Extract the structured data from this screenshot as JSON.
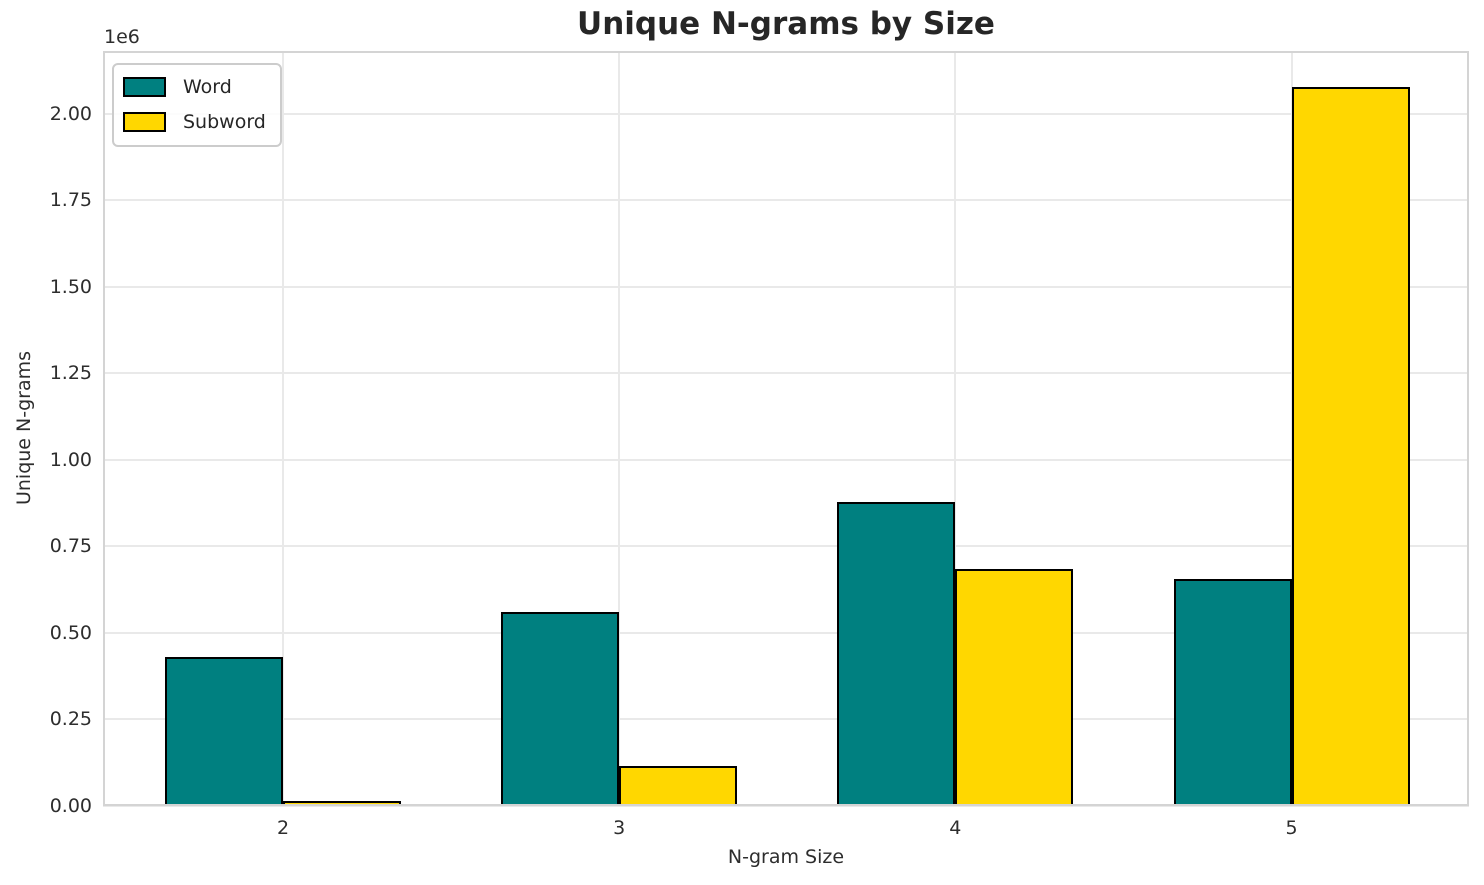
{
  "chart_data": {
    "type": "bar",
    "title": "Unique N-grams by Size",
    "xlabel": "N-gram Size",
    "ylabel": "Unique N-grams",
    "y_offset_label": "1e6",
    "categories": [
      "2",
      "3",
      "4",
      "5"
    ],
    "series": [
      {
        "name": "Word",
        "color": "#008080",
        "values": [
          430000,
          562000,
          880000,
          656000
        ]
      },
      {
        "name": "Subword",
        "color": "#FFD700",
        "values": [
          15000,
          115000,
          684000,
          2078000
        ]
      }
    ],
    "ylim": [
      0,
      2182000
    ],
    "yticks": [
      0,
      250000,
      500000,
      750000,
      1000000,
      1250000,
      1500000,
      1750000,
      2000000
    ],
    "ytick_labels": [
      "0.00",
      "0.25",
      "0.50",
      "0.75",
      "1.00",
      "1.25",
      "1.50",
      "1.75",
      "2.00"
    ],
    "grid": true,
    "legend_position": "upper left",
    "bar_edge_color": "#000000",
    "gridline_color": "#e9e9e9",
    "spine_color": "#d4d4d4"
  }
}
